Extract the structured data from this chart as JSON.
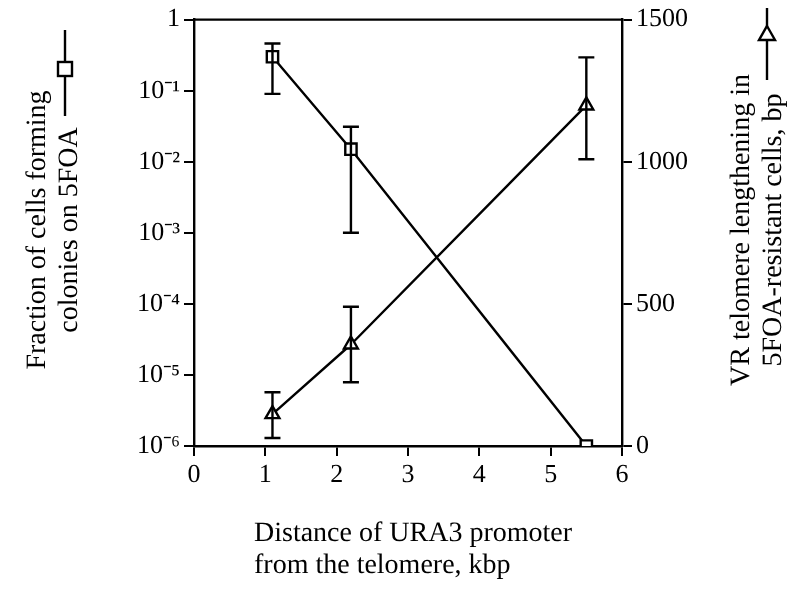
{
  "chart_data": {
    "type": "line",
    "xlabel": "Distance of URA3 promoter\nfrom the telomere, kbp",
    "ylabel": "Fraction of cells forming\ncolonies on 5FOA",
    "y2label": "VR telomere lengthening in\n5FOA-resistant cells, bp",
    "x": [
      1.1,
      2.2,
      5.5
    ],
    "xlim": [
      0,
      6
    ],
    "xticks": [
      0,
      1,
      2,
      3,
      4,
      5,
      6
    ],
    "log": "y",
    "ylim": [
      1e-06,
      1
    ],
    "yticks": [
      {
        "value": 1e-06,
        "label": "10⁻⁶"
      },
      {
        "value": 1e-05,
        "label": "10⁻⁵"
      },
      {
        "value": 0.0001,
        "label": "10⁻⁴"
      },
      {
        "value": 0.001,
        "label": "10⁻³"
      },
      {
        "value": 0.01,
        "label": "10⁻²"
      },
      {
        "value": 0.1,
        "label": "10⁻¹"
      },
      1
    ],
    "y2lim": [
      0,
      1500
    ],
    "y2ticks": [
      0,
      500,
      1000,
      1500
    ],
    "grid": false,
    "legend": false,
    "series": [
      {
        "color": "#000000",
        "marker": "square",
        "values": [
          0.3,
          0.015,
          1e-06
        ],
        "errors": [
          [
            0.09,
            0.46
          ],
          [
            0.001,
            0.031
          ],
          null
        ]
      },
      {
        "color": "#000000",
        "marker": "triangle",
        "axis": "y2",
        "values": [
          112,
          357,
          1198
        ],
        "errors": [
          [
            28,
            189
          ],
          [
            224,
            490
          ],
          [
            1009,
            1367
          ]
        ]
      }
    ]
  }
}
